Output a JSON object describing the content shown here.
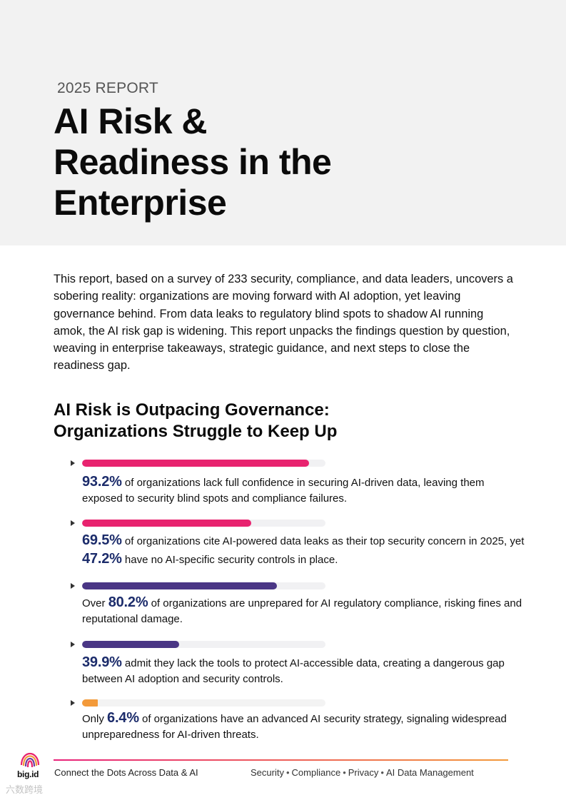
{
  "hero": {
    "kicker": "2025 REPORT",
    "title_lines": [
      "AI Risk &",
      "Readiness in the",
      "Enterprise"
    ]
  },
  "intro": "This report, based on a survey of 233 security, compliance, and data leaders, uncovers a sobering reality: organizations are moving forward with AI adoption, yet leaving governance behind. From data leaks to regulatory blind spots to shadow AI running amok, the AI risk gap is widening. This report unpacks the findings question by question, weaving in enterprise takeaways, strategic guidance, and next steps to close the readiness gap.",
  "section": {
    "heading_lines": [
      "AI Risk is Outpacing Governance:",
      "Organizations Struggle to Keep Up"
    ]
  },
  "stats": [
    {
      "percent": 93.2,
      "color": "#e8236f",
      "prefix": "",
      "value": "93.2%",
      "middle": " of organizations lack full confidence in securing AI-driven data, leaving them exposed to security blind spots and compliance failures.",
      "value2": "",
      "suffix": ""
    },
    {
      "percent": 69.5,
      "color": "#e8236f",
      "prefix": "",
      "value": "69.5%",
      "middle": " of organizations cite AI-powered data leaks as their top security concern in 2025, yet ",
      "value2": "47.2%",
      "suffix": " have no AI-specific security controls in place."
    },
    {
      "percent": 80.2,
      "color": "#4a3685",
      "prefix": "Over ",
      "value": "80.2%",
      "middle": " of organizations are unprepared for AI regulatory compliance, risking fines and reputational damage.",
      "value2": "",
      "suffix": ""
    },
    {
      "percent": 39.9,
      "color": "#4a3685",
      "prefix": "",
      "value": "39.9%",
      "middle": " admit they lack the tools to protect AI-accessible data, creating a dangerous gap between AI adoption and security controls.",
      "value2": "",
      "suffix": ""
    },
    {
      "percent": 6.4,
      "color": "#f39a3a",
      "prefix": "Only ",
      "value": "6.4%",
      "middle": " of organizations have an advanced AI security strategy, signaling widespread unpreparedness for AI-driven threats.",
      "value2": "",
      "suffix": ""
    }
  ],
  "footer": {
    "logo_text": "big.id",
    "tagline": "Connect the Dots Across Data & AI",
    "topics": [
      "Security",
      "Compliance",
      "Privacy",
      "AI Data Management"
    ]
  },
  "watermark": "六数跨境"
}
